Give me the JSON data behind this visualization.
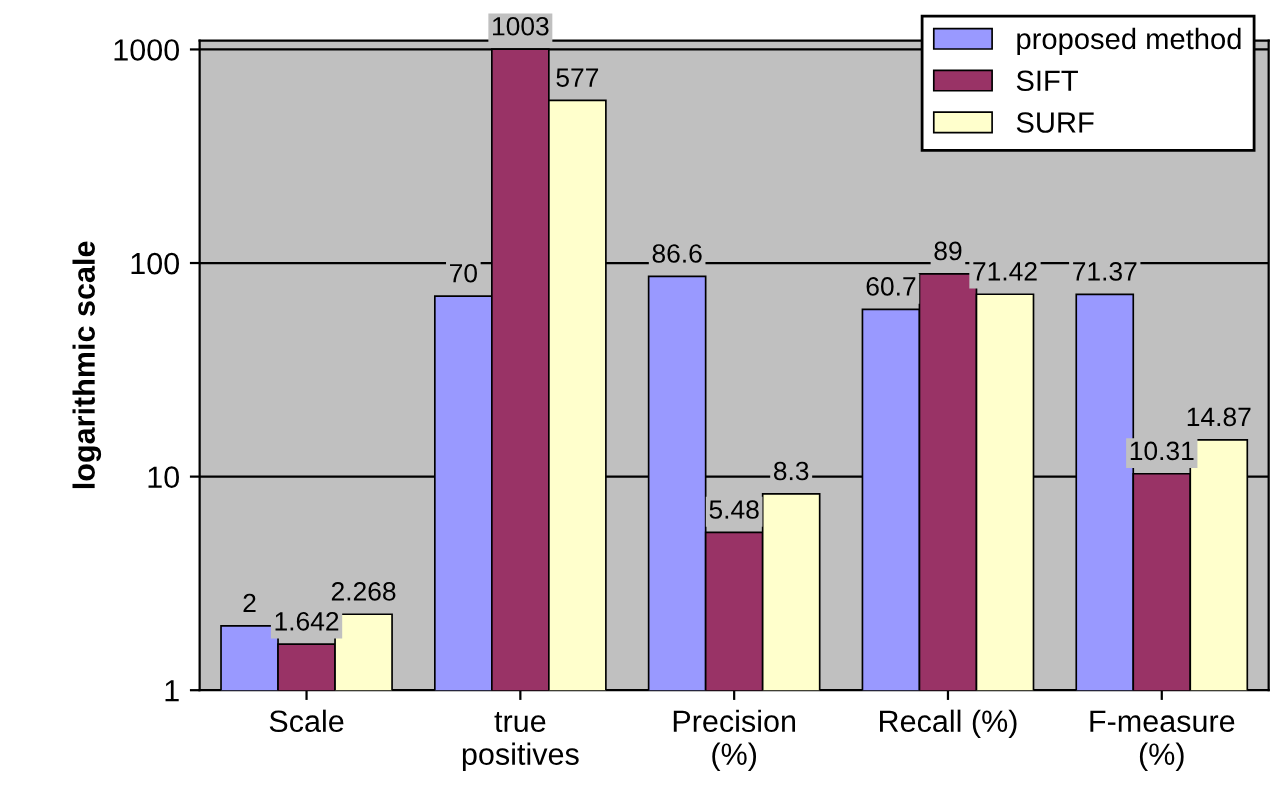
{
  "chart_data": {
    "type": "bar",
    "ylabel": "logarithmic scale",
    "categories": [
      "Scale",
      "true\npositives",
      "Precision\n(%)",
      "Recall (%)",
      "F-measure\n(%)"
    ],
    "series": [
      {
        "name": "proposed method",
        "color": "#9999ff",
        "values": [
          2,
          70,
          86.6,
          60.7,
          71.37
        ]
      },
      {
        "name": "SIFT",
        "color": "#993366",
        "values": [
          1.642,
          1003,
          5.48,
          89,
          10.31
        ]
      },
      {
        "name": "SURF",
        "color": "#ffffcc",
        "values": [
          2.268,
          577,
          8.3,
          71.42,
          14.87
        ]
      }
    ],
    "log": true,
    "ylim": [
      1,
      1100
    ],
    "yticks": [
      1,
      10,
      100,
      1000
    ],
    "grid": "y",
    "legend": "top right",
    "data_labels": true
  }
}
